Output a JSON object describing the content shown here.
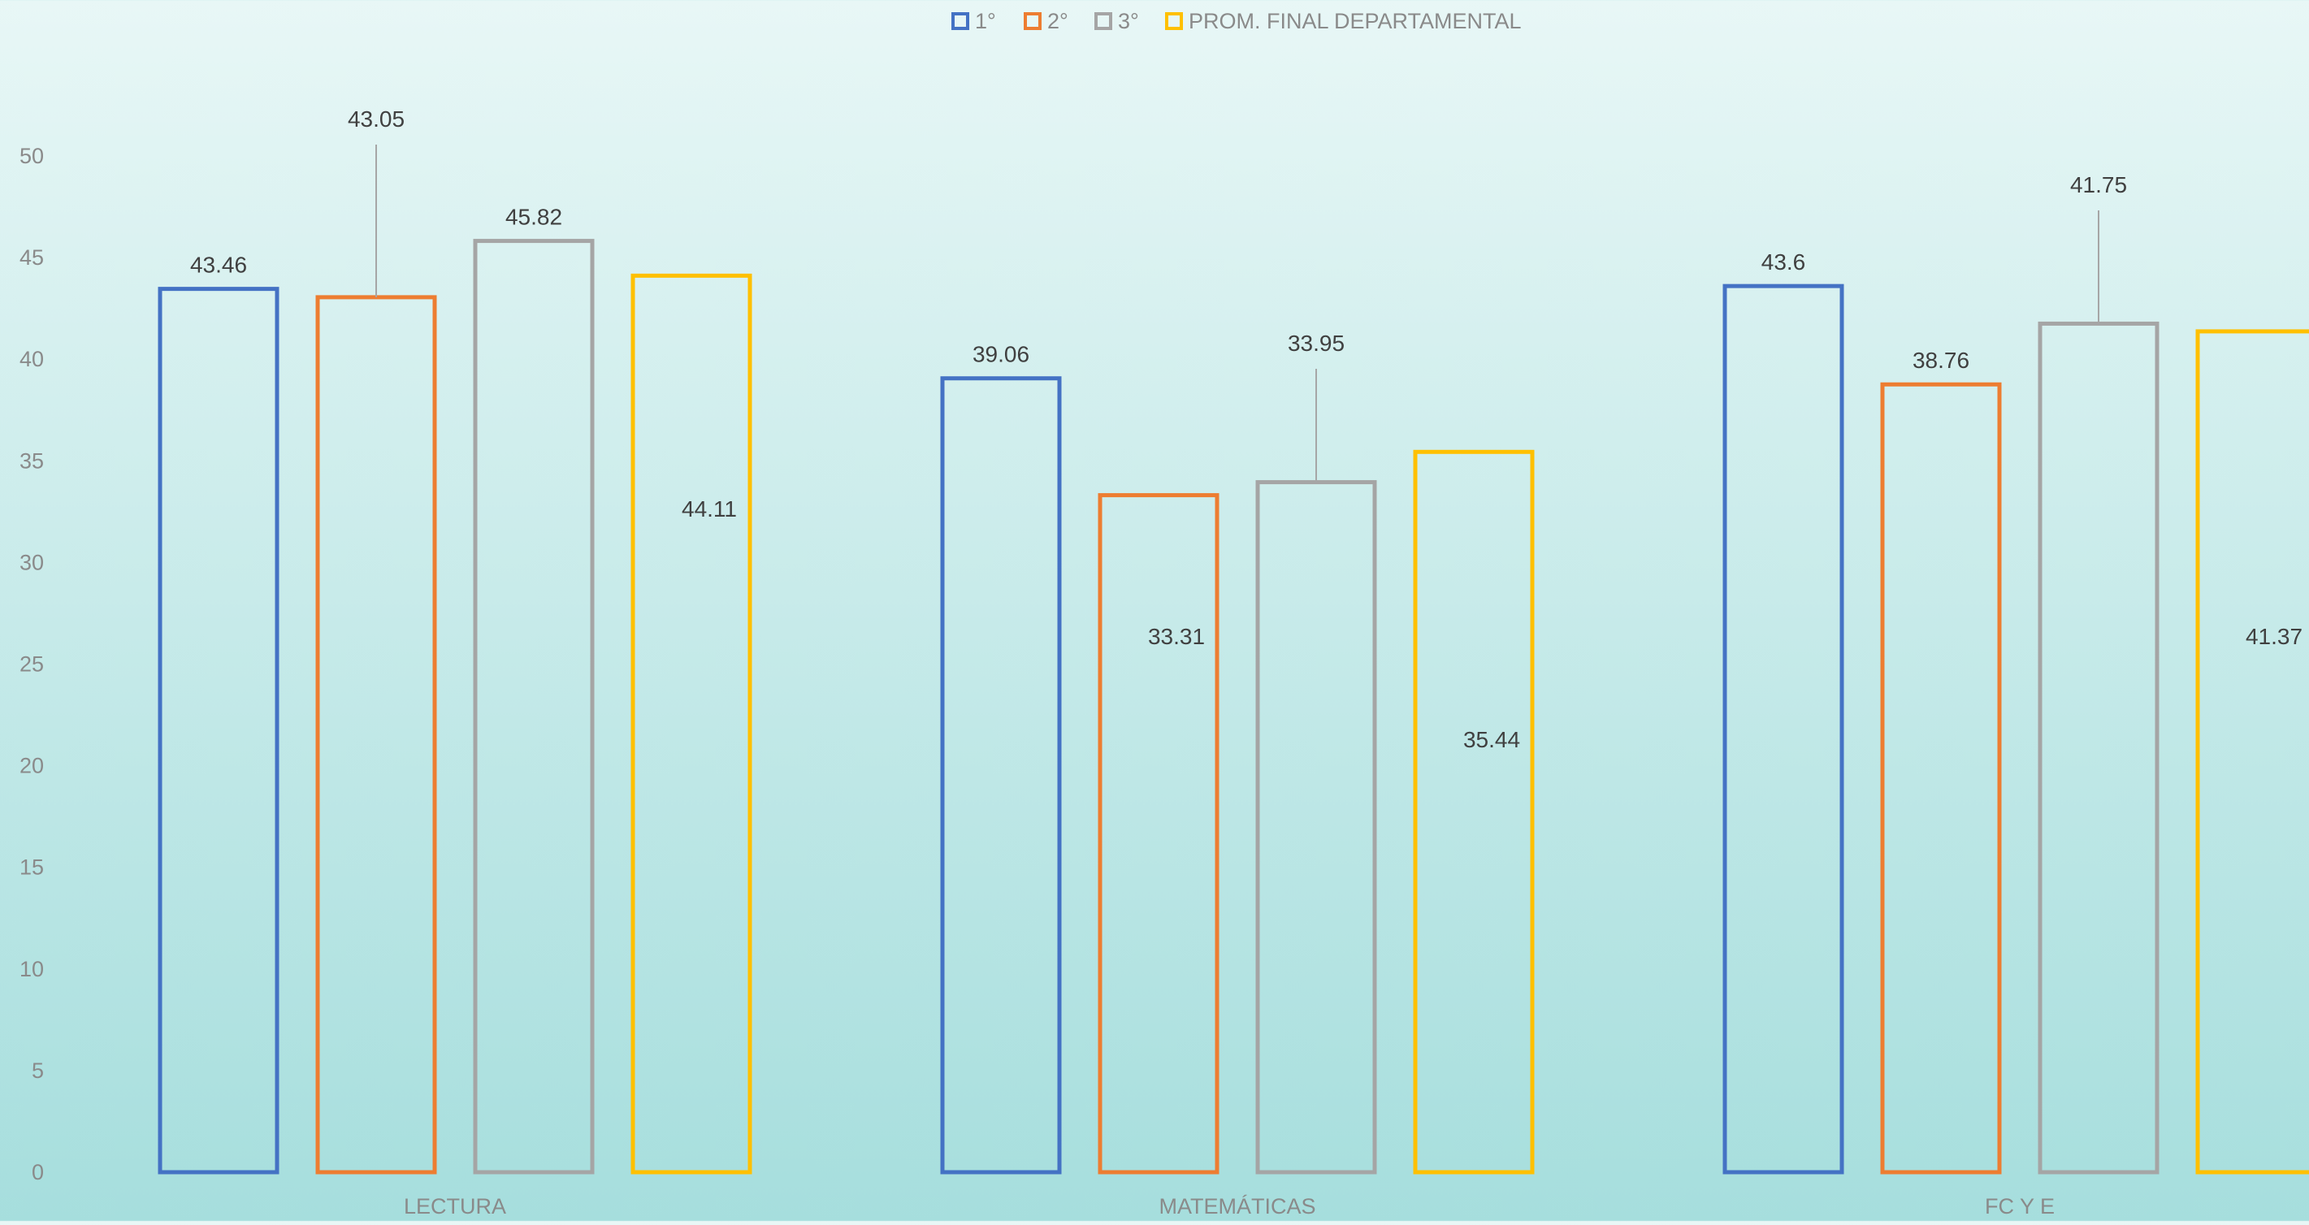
{
  "chart_data": {
    "type": "bar",
    "categories": [
      "LECTURA",
      "MATEMÁTICAS",
      "FC Y E"
    ],
    "series": [
      {
        "name": "1°",
        "values": [
          43.46,
          39.06,
          43.6
        ],
        "color": "#4472c4"
      },
      {
        "name": "2°",
        "values": [
          43.05,
          33.31,
          38.76
        ],
        "color": "#ed7d31"
      },
      {
        "name": "3°",
        "values": [
          45.82,
          33.95,
          41.75
        ],
        "color": "#a5a5a5"
      },
      {
        "name": "PROM. FINAL DEPARTAMENTAL",
        "values": [
          44.11,
          35.44,
          41.37
        ],
        "color": "#ffc000"
      }
    ],
    "value_labels": [
      [
        "43.46",
        "39.06",
        "43.6"
      ],
      [
        "43.05",
        "33.31",
        "38.76"
      ],
      [
        "45.82",
        "33.95",
        "41.75"
      ],
      [
        "44.11",
        "35.44",
        "41.37"
      ]
    ],
    "yticks": [
      "0",
      "5",
      "10",
      "15",
      "20",
      "25",
      "30",
      "35",
      "40",
      "45",
      "50"
    ],
    "ylim": [
      0,
      54.2
    ],
    "title": "",
    "xlabel": "",
    "ylabel": "",
    "grid": false,
    "legend_position": "top",
    "bar_style": "outline"
  }
}
